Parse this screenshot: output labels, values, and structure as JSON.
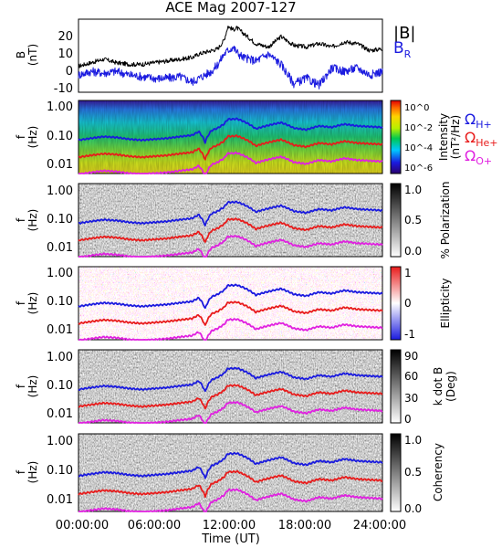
{
  "chart_data": [
    {
      "type": "line",
      "title": "ACE Mag 2007-127",
      "ylabel": "B",
      "yunit": "(nT)",
      "ylim": [
        -12,
        30
      ],
      "yticks": [
        "20",
        "10",
        "0",
        "-10"
      ],
      "xlim": [
        0,
        24
      ],
      "legend": [
        "|B|",
        "B"
      ],
      "legend_sub": [
        "",
        "R"
      ],
      "colors": {
        "total": "#000000",
        "radial": "#1a1adf"
      },
      "series": [
        {
          "name": "|B|",
          "x": [
            0,
            1,
            2,
            3,
            4,
            5,
            6,
            7,
            8,
            9,
            9.5,
            10,
            10.5,
            11,
            11.5,
            11.8,
            12.2,
            12.5,
            13,
            14,
            15,
            16,
            17,
            18,
            19,
            20,
            21,
            22,
            23,
            24
          ],
          "values": [
            3,
            5,
            7,
            5,
            4,
            4,
            5,
            6,
            7,
            8,
            10,
            11,
            12,
            13,
            18,
            26,
            24,
            25,
            22,
            16,
            14,
            20,
            15,
            14,
            16,
            14,
            17,
            16,
            12,
            13
          ]
        },
        {
          "name": "B",
          "x": [
            0,
            1,
            2,
            3,
            4,
            5,
            6,
            7,
            8,
            9,
            9.5,
            10,
            10.5,
            11,
            11.5,
            11.8,
            12.2,
            12.5,
            13,
            14,
            15,
            16,
            17,
            18,
            19,
            20,
            21,
            22,
            23,
            24
          ],
          "values": [
            -2,
            0,
            -1,
            0,
            -2,
            -3,
            -4,
            -4,
            -3,
            -6,
            -4,
            -2,
            0,
            4,
            10,
            12,
            14,
            11,
            8,
            6,
            10,
            4,
            -7,
            -4,
            -8,
            2,
            0,
            2,
            -2,
            0
          ]
        }
      ]
    },
    {
      "type": "heatmap",
      "ylabel": "f",
      "yunit": "(Hz)",
      "yticks": [
        "1.00",
        "0.10",
        "0.01"
      ],
      "colorbar_label": "Intensity",
      "colorbar_unit": "(nT²/Hz)",
      "colorbar_ticks": [
        "10^0",
        "10^-2",
        "10^-4",
        "10^-6"
      ],
      "overlay_legend": [
        {
          "base": "Ω",
          "sub": "H+",
          "color": "#1a1adf"
        },
        {
          "base": "Ω",
          "sub": "He+",
          "color": "#e81b1b"
        },
        {
          "base": "Ω",
          "sub": "O+",
          "color": "#e020e0"
        }
      ]
    },
    {
      "type": "heatmap",
      "ylabel": "f",
      "yunit": "(Hz)",
      "yticks": [
        "1.00",
        "0.10",
        "0.01"
      ],
      "colorbar_label": "% Polarization",
      "colorbar_ticks": [
        "1.0",
        "0.5",
        "0.0"
      ]
    },
    {
      "type": "heatmap",
      "ylabel": "f",
      "yunit": "(Hz)",
      "yticks": [
        "1.00",
        "0.10",
        "0.01"
      ],
      "colorbar_label": "Ellipticity",
      "colorbar_ticks": [
        "1",
        "0",
        "-1"
      ]
    },
    {
      "type": "heatmap",
      "ylabel": "f",
      "yunit": "(Hz)",
      "yticks": [
        "1.00",
        "0.10",
        "0.01"
      ],
      "colorbar_label": "k dot B",
      "colorbar_unit": "(Deg)",
      "colorbar_ticks": [
        "90",
        "60",
        "30",
        "0"
      ]
    },
    {
      "type": "heatmap",
      "ylabel": "f",
      "yunit": "(Hz)",
      "yticks": [
        "1.00",
        "0.10",
        "0.01"
      ],
      "colorbar_label": "Coherency",
      "colorbar_ticks": [
        "1.0",
        "0.5",
        "0.0"
      ],
      "xlabel": "Time (UT)",
      "xticks": [
        "00:00:00",
        "06:00:00",
        "12:00:00",
        "18:00:00",
        "24:00:00"
      ]
    }
  ],
  "gyro_lines": {
    "x": [
      0,
      1,
      2,
      3,
      4,
      5,
      6,
      7,
      8,
      9,
      9.5,
      10,
      10.5,
      11,
      11.5,
      11.8,
      12.2,
      12.5,
      13,
      14,
      15,
      16,
      17,
      18,
      19,
      20,
      21,
      22,
      23,
      24
    ],
    "hplus_hz": [
      0.06,
      0.07,
      0.08,
      0.075,
      0.065,
      0.06,
      0.065,
      0.07,
      0.08,
      0.09,
      0.12,
      0.05,
      0.13,
      0.16,
      0.22,
      0.33,
      0.33,
      0.34,
      0.28,
      0.15,
      0.2,
      0.25,
      0.16,
      0.14,
      0.19,
      0.17,
      0.22,
      0.19,
      0.18,
      0.17
    ]
  }
}
